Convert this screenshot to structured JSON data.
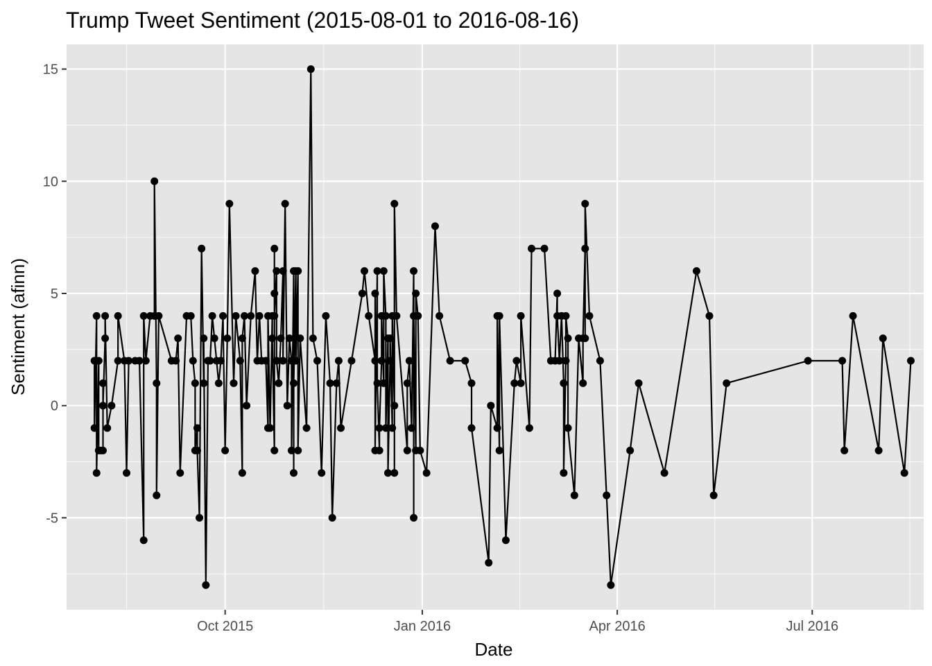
{
  "chart_data": {
    "type": "line",
    "title": "Trump Tweet Sentiment (2015-08-01 to 2016-08-16)",
    "xlabel": "Date",
    "ylabel": "Sentiment (afinn)",
    "x_ticks": [
      {
        "date": "2015-10-01",
        "label": "Oct 2015"
      },
      {
        "date": "2016-01-01",
        "label": "Jan 2016"
      },
      {
        "date": "2016-04-01",
        "label": "Apr 2016"
      },
      {
        "date": "2016-07-01",
        "label": "Jul 2016"
      }
    ],
    "y_ticks": [
      {
        "value": -5,
        "label": "-5"
      },
      {
        "value": 0,
        "label": "0"
      },
      {
        "value": 5,
        "label": "5"
      },
      {
        "value": 10,
        "label": "10"
      },
      {
        "value": 15,
        "label": "15"
      }
    ],
    "xlim": [
      "2015-07-19",
      "2016-08-22"
    ],
    "ylim": [
      -9.1,
      16.1
    ],
    "grid": true,
    "colors": {
      "panel": "#e5e5e5",
      "grid": "#ffffff",
      "line": "#000000",
      "point": "#000000",
      "tick": "#333333"
    },
    "points": [
      [
        "2015-08-01",
        2
      ],
      [
        "2015-08-01",
        -1
      ],
      [
        "2015-08-02",
        4
      ],
      [
        "2015-08-02",
        -3
      ],
      [
        "2015-08-03",
        2
      ],
      [
        "2015-08-03",
        -2
      ],
      [
        "2015-08-04",
        -2
      ],
      [
        "2015-08-05",
        -2
      ],
      [
        "2015-08-05",
        1
      ],
      [
        "2015-08-05",
        0
      ],
      [
        "2015-08-06",
        3
      ],
      [
        "2015-08-06",
        4
      ],
      [
        "2015-08-07",
        -1
      ],
      [
        "2015-08-09",
        0
      ],
      [
        "2015-08-12",
        2
      ],
      [
        "2015-08-12",
        4
      ],
      [
        "2015-08-15",
        2
      ],
      [
        "2015-08-16",
        -3
      ],
      [
        "2015-08-17",
        2
      ],
      [
        "2015-08-20",
        2
      ],
      [
        "2015-08-22",
        2
      ],
      [
        "2015-08-24",
        -6
      ],
      [
        "2015-08-24",
        4
      ],
      [
        "2015-08-25",
        2
      ],
      [
        "2015-08-27",
        4
      ],
      [
        "2015-08-29",
        4
      ],
      [
        "2015-08-29",
        10
      ],
      [
        "2015-08-30",
        1
      ],
      [
        "2015-08-30",
        -4
      ],
      [
        "2015-08-31",
        4
      ],
      [
        "2015-09-06",
        2
      ],
      [
        "2015-09-08",
        2
      ],
      [
        "2015-09-09",
        3
      ],
      [
        "2015-09-10",
        -3
      ],
      [
        "2015-09-13",
        4
      ],
      [
        "2015-09-15",
        4
      ],
      [
        "2015-09-16",
        2
      ],
      [
        "2015-09-17",
        1
      ],
      [
        "2015-09-17",
        -2
      ],
      [
        "2015-09-18",
        -1
      ],
      [
        "2015-09-18",
        -2
      ],
      [
        "2015-09-19",
        -5
      ],
      [
        "2015-09-20",
        7
      ],
      [
        "2015-09-21",
        1
      ],
      [
        "2015-09-21",
        3
      ],
      [
        "2015-09-22",
        -8
      ],
      [
        "2015-09-23",
        2
      ],
      [
        "2015-09-24",
        2
      ],
      [
        "2015-09-25",
        4
      ],
      [
        "2015-09-26",
        3
      ],
      [
        "2015-09-27",
        2
      ],
      [
        "2015-09-28",
        1
      ],
      [
        "2015-09-29",
        2
      ],
      [
        "2015-09-30",
        4
      ],
      [
        "2015-10-01",
        -2
      ],
      [
        "2015-10-02",
        3
      ],
      [
        "2015-10-03",
        9
      ],
      [
        "2015-10-05",
        1
      ],
      [
        "2015-10-06",
        4
      ],
      [
        "2015-10-08",
        2
      ],
      [
        "2015-10-09",
        -3
      ],
      [
        "2015-10-09",
        3
      ],
      [
        "2015-10-10",
        4
      ],
      [
        "2015-10-11",
        0
      ],
      [
        "2015-10-13",
        4
      ],
      [
        "2015-10-15",
        6
      ],
      [
        "2015-10-16",
        2
      ],
      [
        "2015-10-17",
        4
      ],
      [
        "2015-10-18",
        2
      ],
      [
        "2015-10-20",
        2
      ],
      [
        "2015-10-21",
        -1
      ],
      [
        "2015-10-21",
        4
      ],
      [
        "2015-10-22",
        -1
      ],
      [
        "2015-10-23",
        4
      ],
      [
        "2015-10-23",
        3
      ],
      [
        "2015-10-24",
        -2
      ],
      [
        "2015-10-24",
        5
      ],
      [
        "2015-10-24",
        7
      ],
      [
        "2015-10-24",
        4
      ],
      [
        "2015-10-25",
        6
      ],
      [
        "2015-10-25",
        2
      ],
      [
        "2015-10-26",
        1
      ],
      [
        "2015-10-27",
        3
      ],
      [
        "2015-10-28",
        6
      ],
      [
        "2015-10-28",
        2
      ],
      [
        "2015-10-29",
        9
      ],
      [
        "2015-10-30",
        0
      ],
      [
        "2015-10-31",
        3
      ],
      [
        "2015-11-01",
        2
      ],
      [
        "2015-11-01",
        -2
      ],
      [
        "2015-11-02",
        6
      ],
      [
        "2015-11-02",
        -3
      ],
      [
        "2015-11-02",
        1
      ],
      [
        "2015-11-03",
        6
      ],
      [
        "2015-11-03",
        2
      ],
      [
        "2015-11-04",
        6
      ],
      [
        "2015-11-04",
        -2
      ],
      [
        "2015-11-05",
        3
      ],
      [
        "2015-11-08",
        -1
      ],
      [
        "2015-11-10",
        15
      ],
      [
        "2015-11-11",
        3
      ],
      [
        "2015-11-13",
        2
      ],
      [
        "2015-11-15",
        -3
      ],
      [
        "2015-11-17",
        4
      ],
      [
        "2015-11-19",
        1
      ],
      [
        "2015-11-20",
        -5
      ],
      [
        "2015-11-22",
        1
      ],
      [
        "2015-11-23",
        2
      ],
      [
        "2015-11-24",
        -1
      ],
      [
        "2015-11-29",
        2
      ],
      [
        "2015-12-04",
        5
      ],
      [
        "2015-12-05",
        6
      ],
      [
        "2015-12-07",
        4
      ],
      [
        "2015-12-10",
        2
      ],
      [
        "2015-12-10",
        5
      ],
      [
        "2015-12-10",
        -2
      ],
      [
        "2015-12-11",
        6
      ],
      [
        "2015-12-11",
        1
      ],
      [
        "2015-12-12",
        -2
      ],
      [
        "2015-12-12",
        -1
      ],
      [
        "2015-12-13",
        2
      ],
      [
        "2015-12-13",
        4
      ],
      [
        "2015-12-14",
        1
      ],
      [
        "2015-12-14",
        6
      ],
      [
        "2015-12-15",
        4
      ],
      [
        "2015-12-15",
        -1
      ],
      [
        "2015-12-16",
        3
      ],
      [
        "2015-12-16",
        -3
      ],
      [
        "2015-12-17",
        2
      ],
      [
        "2015-12-17",
        3
      ],
      [
        "2015-12-18",
        -1
      ],
      [
        "2015-12-18",
        4
      ],
      [
        "2015-12-19",
        0
      ],
      [
        "2015-12-19",
        -3
      ],
      [
        "2015-12-19",
        9
      ],
      [
        "2015-12-20",
        4
      ],
      [
        "2015-12-25",
        -2
      ],
      [
        "2015-12-25",
        1
      ],
      [
        "2015-12-26",
        2
      ],
      [
        "2015-12-27",
        -1
      ],
      [
        "2015-12-28",
        6
      ],
      [
        "2015-12-28",
        -5
      ],
      [
        "2015-12-28",
        4
      ],
      [
        "2015-12-29",
        -2
      ],
      [
        "2015-12-29",
        5
      ],
      [
        "2015-12-30",
        4
      ],
      [
        "2015-12-31",
        -2
      ],
      [
        "2016-01-03",
        -3
      ],
      [
        "2016-01-07",
        8
      ],
      [
        "2016-01-09",
        4
      ],
      [
        "2016-01-14",
        2
      ],
      [
        "2016-01-21",
        2
      ],
      [
        "2016-01-24",
        1
      ],
      [
        "2016-01-24",
        -1
      ],
      [
        "2016-02-01",
        -7
      ],
      [
        "2016-02-02",
        0
      ],
      [
        "2016-02-05",
        -1
      ],
      [
        "2016-02-05",
        4
      ],
      [
        "2016-02-06",
        -2
      ],
      [
        "2016-02-06",
        4
      ],
      [
        "2016-02-09",
        -6
      ],
      [
        "2016-02-13",
        1
      ],
      [
        "2016-02-14",
        2
      ],
      [
        "2016-02-16",
        1
      ],
      [
        "2016-02-16",
        4
      ],
      [
        "2016-02-20",
        -1
      ],
      [
        "2016-02-21",
        7
      ],
      [
        "2016-02-27",
        7
      ],
      [
        "2016-03-01",
        2
      ],
      [
        "2016-03-03",
        2
      ],
      [
        "2016-03-04",
        5
      ],
      [
        "2016-03-04",
        4
      ],
      [
        "2016-03-05",
        2
      ],
      [
        "2016-03-06",
        4
      ],
      [
        "2016-03-07",
        1
      ],
      [
        "2016-03-07",
        -3
      ],
      [
        "2016-03-08",
        2
      ],
      [
        "2016-03-08",
        4
      ],
      [
        "2016-03-09",
        3
      ],
      [
        "2016-03-09",
        -1
      ],
      [
        "2016-03-12",
        -4
      ],
      [
        "2016-03-14",
        3
      ],
      [
        "2016-03-16",
        1
      ],
      [
        "2016-03-16",
        3
      ],
      [
        "2016-03-17",
        7
      ],
      [
        "2016-03-17",
        3
      ],
      [
        "2016-03-17",
        9
      ],
      [
        "2016-03-19",
        4
      ],
      [
        "2016-03-24",
        2
      ],
      [
        "2016-03-27",
        -4
      ],
      [
        "2016-03-29",
        -8
      ],
      [
        "2016-04-07",
        -2
      ],
      [
        "2016-04-11",
        1
      ],
      [
        "2016-04-23",
        -3
      ],
      [
        "2016-05-08",
        6
      ],
      [
        "2016-05-14",
        4
      ],
      [
        "2016-05-16",
        -4
      ],
      [
        "2016-05-22",
        1
      ],
      [
        "2016-06-29",
        2
      ],
      [
        "2016-07-15",
        2
      ],
      [
        "2016-07-16",
        -2
      ],
      [
        "2016-07-20",
        4
      ],
      [
        "2016-08-01",
        -2
      ],
      [
        "2016-08-03",
        3
      ],
      [
        "2016-08-13",
        -3
      ],
      [
        "2016-08-16",
        2
      ]
    ]
  }
}
